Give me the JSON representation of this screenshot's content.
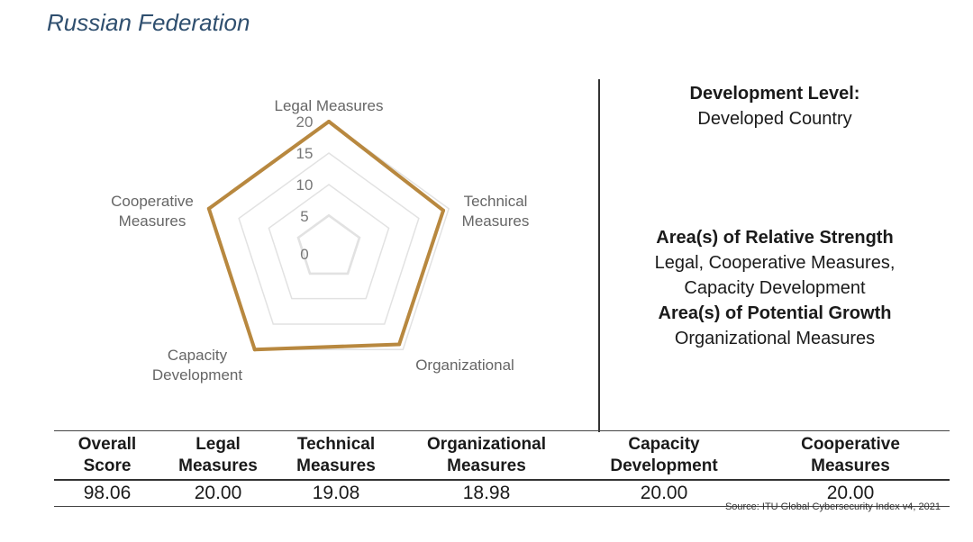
{
  "page_title": "Russian Federation",
  "chart_data": {
    "type": "radar",
    "axes": [
      "Legal Measures",
      "Technical Measures",
      "Organizational",
      "Capacity Development",
      "Cooperative Measures"
    ],
    "axis_labels": [
      [
        "Legal Measures"
      ],
      [
        "Technical",
        "Measures"
      ],
      [
        "Organizational"
      ],
      [
        "Capacity",
        "Development"
      ],
      [
        "Cooperative",
        "Measures"
      ]
    ],
    "ticks": [
      "0",
      "5",
      "10",
      "15",
      "20"
    ],
    "range": [
      0,
      20
    ],
    "values": [
      20.0,
      19.08,
      18.98,
      20.0,
      20.0
    ],
    "series_color": "#b8883f",
    "grid_color": "#e2e2e2"
  },
  "development": {
    "heading": "Development Level:",
    "value": "Developed Country"
  },
  "strength": {
    "heading": "Area(s) of Relative Strength",
    "line1": "Legal, Cooperative Measures,",
    "line2": "Capacity Development"
  },
  "growth": {
    "heading": "Area(s) of Potential Growth",
    "value": "Organizational Measures"
  },
  "table": {
    "headers": [
      [
        "Overall",
        "Score"
      ],
      [
        "Legal",
        "Measures"
      ],
      [
        "Technical",
        "Measures"
      ],
      [
        "Organizational",
        "Measures"
      ],
      [
        "Capacity",
        "Development"
      ],
      [
        "Cooperative",
        "Measures"
      ]
    ],
    "values": [
      "98.06",
      "20.00",
      "19.08",
      "18.98",
      "20.00",
      "20.00"
    ]
  },
  "source": "Source: ITU Global Cybersecurity Index v4, 2021"
}
